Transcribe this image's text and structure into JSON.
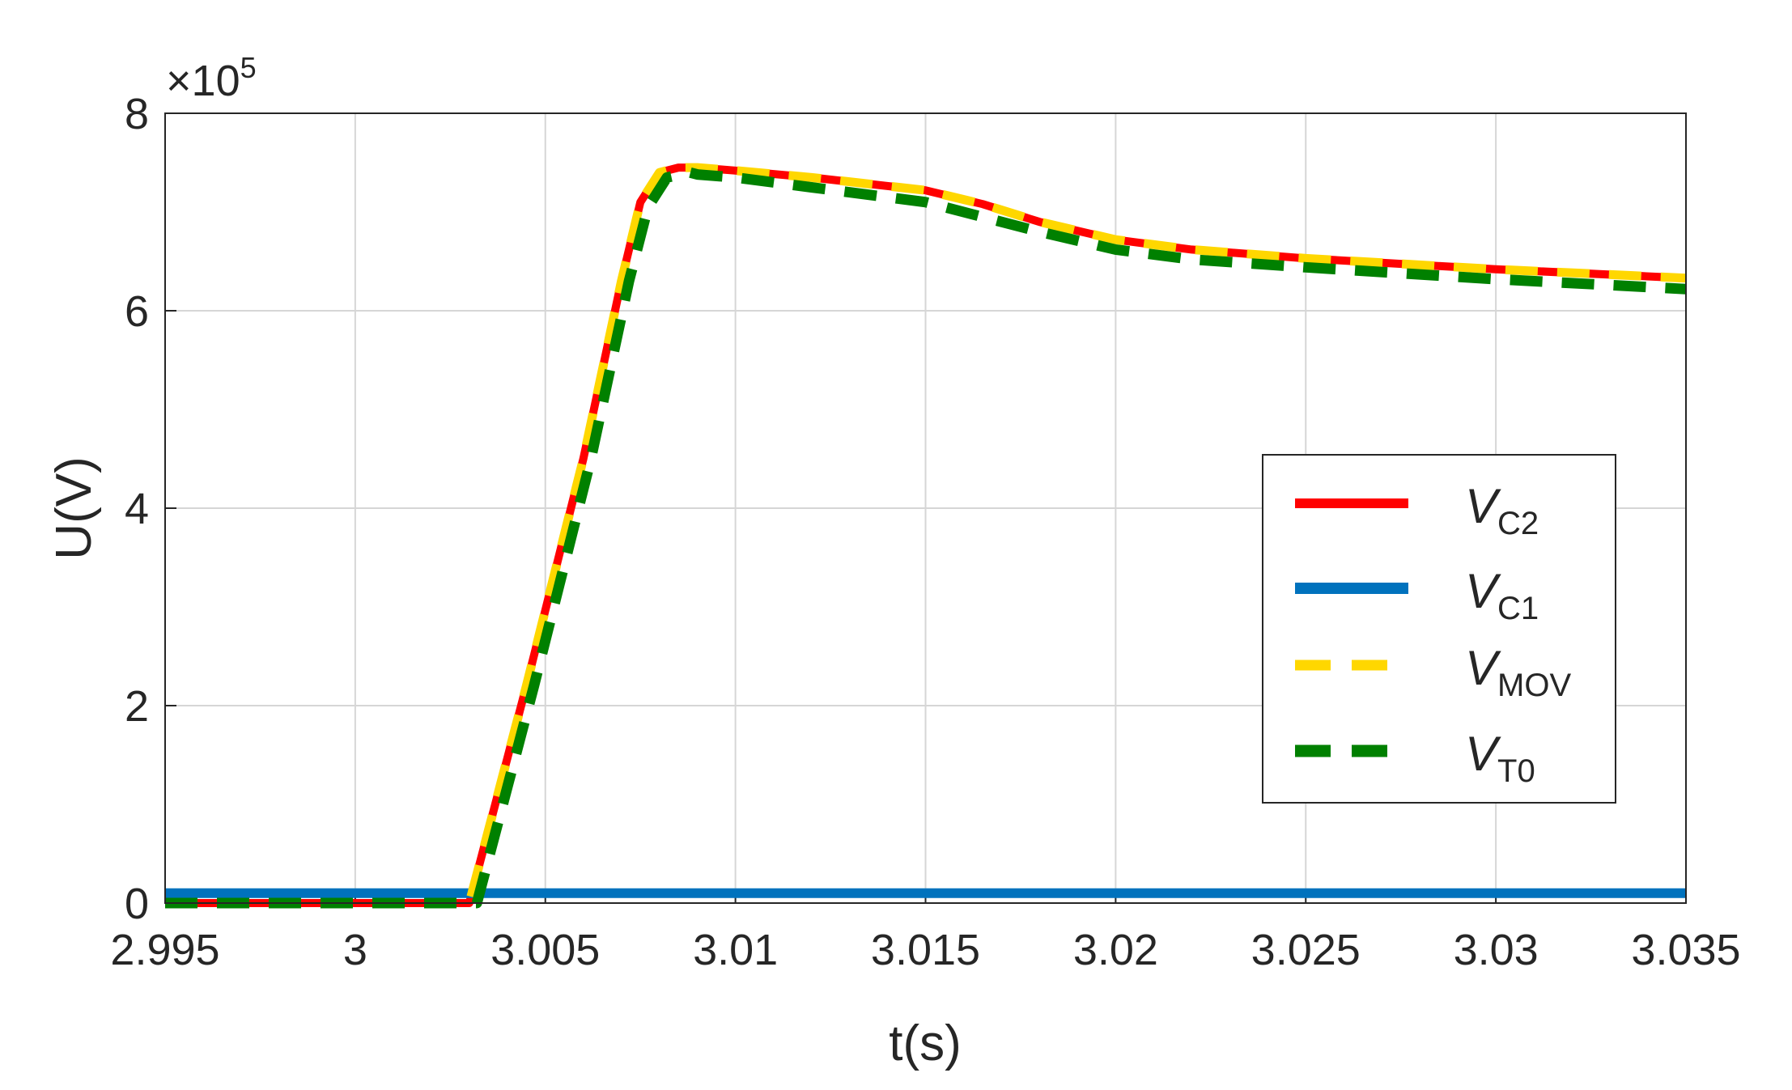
{
  "chart_data": {
    "type": "line",
    "xlabel": "t(s)",
    "ylabel": "U(V)",
    "y_multiplier_base": "×10",
    "y_multiplier_exp": "5",
    "xlim": [
      2.995,
      3.035
    ],
    "ylim": [
      0,
      8
    ],
    "grid": true,
    "legend_position": "center-right",
    "x_ticks": [
      2.995,
      3.0,
      3.005,
      3.01,
      3.015,
      3.02,
      3.025,
      3.03,
      3.035
    ],
    "x_tick_labels": [
      "2.995",
      "3",
      "3.005",
      "3.01",
      "3.015",
      "3.02",
      "3.025",
      "3.03",
      "3.035"
    ],
    "y_ticks": [
      0,
      2,
      4,
      6,
      8
    ],
    "y_tick_labels": [
      "0",
      "2",
      "4",
      "6",
      "8"
    ],
    "series": [
      {
        "name_main": "V",
        "name_sub": "C2",
        "color": "#ff0000",
        "style": "solid",
        "x": [
          2.995,
          3.0,
          3.003,
          3.0045,
          3.006,
          3.007,
          3.0075,
          3.008,
          3.0085,
          3.009,
          3.01,
          3.012,
          3.015,
          3.0165,
          3.018,
          3.02,
          3.022,
          3.025,
          3.03,
          3.035
        ],
        "y": [
          0,
          0,
          0,
          2.2,
          4.5,
          6.3,
          7.1,
          7.4,
          7.45,
          7.45,
          7.42,
          7.35,
          7.22,
          7.08,
          6.9,
          6.72,
          6.62,
          6.53,
          6.42,
          6.33
        ]
      },
      {
        "name_main": "V",
        "name_sub": "C1",
        "color": "#0072bd",
        "style": "solid",
        "x": [
          2.995,
          3.035
        ],
        "y": [
          0.1,
          0.1
        ]
      },
      {
        "name_main": "V",
        "name_sub": "MOV",
        "color": "#ffd700",
        "style": "dashed",
        "x": [
          2.995,
          3.0,
          3.003,
          3.0045,
          3.006,
          3.007,
          3.0075,
          3.008,
          3.0085,
          3.009,
          3.01,
          3.012,
          3.015,
          3.0165,
          3.018,
          3.02,
          3.022,
          3.025,
          3.03,
          3.035
        ],
        "y": [
          0,
          0,
          0,
          2.2,
          4.5,
          6.3,
          7.1,
          7.4,
          7.45,
          7.45,
          7.42,
          7.35,
          7.22,
          7.08,
          6.9,
          6.72,
          6.62,
          6.53,
          6.42,
          6.33
        ]
      },
      {
        "name_main": "V",
        "name_sub": "T0",
        "color": "#008000",
        "style": "dashed",
        "x": [
          2.995,
          3.0,
          3.0032,
          3.0047,
          3.0062,
          3.0072,
          3.0077,
          3.0082,
          3.0088,
          3.009,
          3.01,
          3.012,
          3.015,
          3.0165,
          3.018,
          3.02,
          3.022,
          3.025,
          3.03,
          3.035
        ],
        "y": [
          0,
          0,
          0,
          2.2,
          4.5,
          6.3,
          7.05,
          7.35,
          7.4,
          7.38,
          7.35,
          7.25,
          7.1,
          6.95,
          6.8,
          6.62,
          6.52,
          6.44,
          6.32,
          6.22
        ]
      }
    ]
  }
}
